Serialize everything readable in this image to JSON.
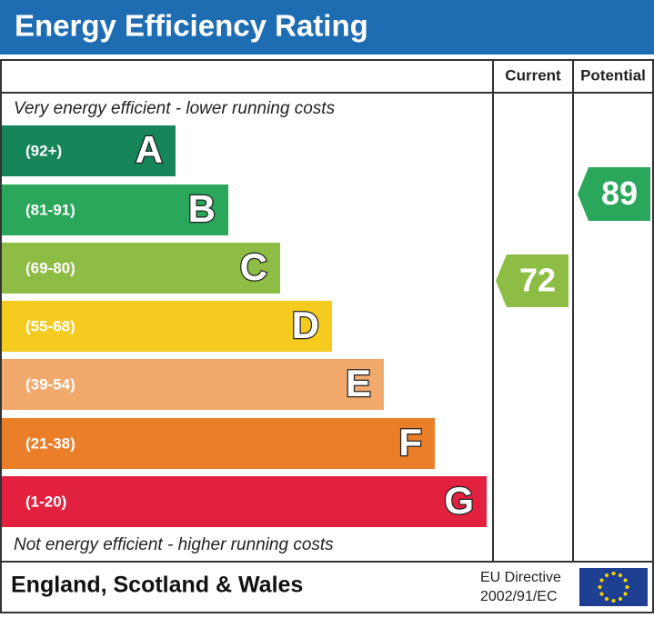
{
  "header": {
    "title": "Energy Efficiency Rating"
  },
  "columns": {
    "current": "Current",
    "potential": "Potential"
  },
  "top_note": "Very energy efficient - lower running costs",
  "bottom_note": "Not energy efficient - higher running costs",
  "bands": [
    {
      "range": "(92+)",
      "letter": "A",
      "color": "#17855a"
    },
    {
      "range": "(81-91)",
      "letter": "B",
      "color": "#2aa75a"
    },
    {
      "range": "(69-80)",
      "letter": "C",
      "color": "#8dbd44"
    },
    {
      "range": "(55-68)",
      "letter": "D",
      "color": "#f4cb1e"
    },
    {
      "range": "(39-54)",
      "letter": "E",
      "color": "#f1a96c"
    },
    {
      "range": "(21-38)",
      "letter": "F",
      "color": "#ea7e29"
    },
    {
      "range": "(1-20)",
      "letter": "G",
      "color": "#e2213f"
    }
  ],
  "current": {
    "value": "72",
    "color": "#8dbd44"
  },
  "potential": {
    "value": "89",
    "color": "#2aa75a"
  },
  "footer": {
    "region": "England, Scotland & Wales",
    "directive_line1": "EU Directive",
    "directive_line2": "2002/91/EC"
  }
}
